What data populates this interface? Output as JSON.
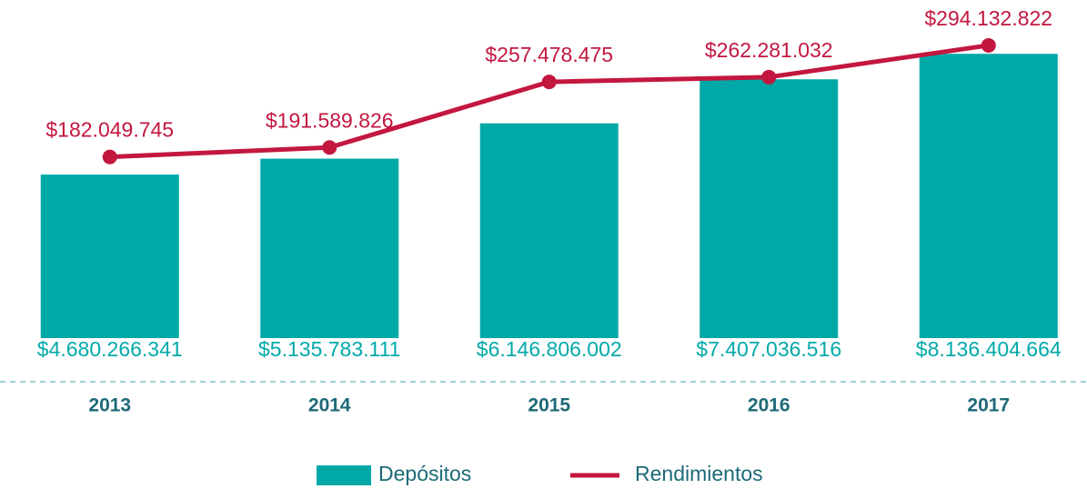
{
  "chart_data": {
    "type": "bar_line",
    "categories": [
      "2013",
      "2014",
      "2015",
      "2016",
      "2017"
    ],
    "series": [
      {
        "name": "Depósitos",
        "type": "bar",
        "color": "#00a9a8",
        "values": [
          4680266341,
          5135783111,
          6146806002,
          7407036516,
          8136404664
        ],
        "value_labels": [
          "$4.680.266.341",
          "$5.135.783.111",
          "$6.146.806.002",
          "$7.407.036.516",
          "$8.136.404.664"
        ]
      },
      {
        "name": "Rendimientos",
        "type": "line",
        "axis": "y2",
        "color": "#c3173f",
        "values": [
          182049745,
          191589826,
          257478475,
          262281032,
          294132822
        ],
        "value_labels": [
          "$182.049.745",
          "$191.589.826",
          "$257.478.475",
          "$262.281.032",
          "$294.132.822"
        ]
      }
    ],
    "ylim": [
      0,
      9000000000
    ],
    "y2lim": [
      0,
      316000000
    ],
    "legend": "bottom"
  }
}
